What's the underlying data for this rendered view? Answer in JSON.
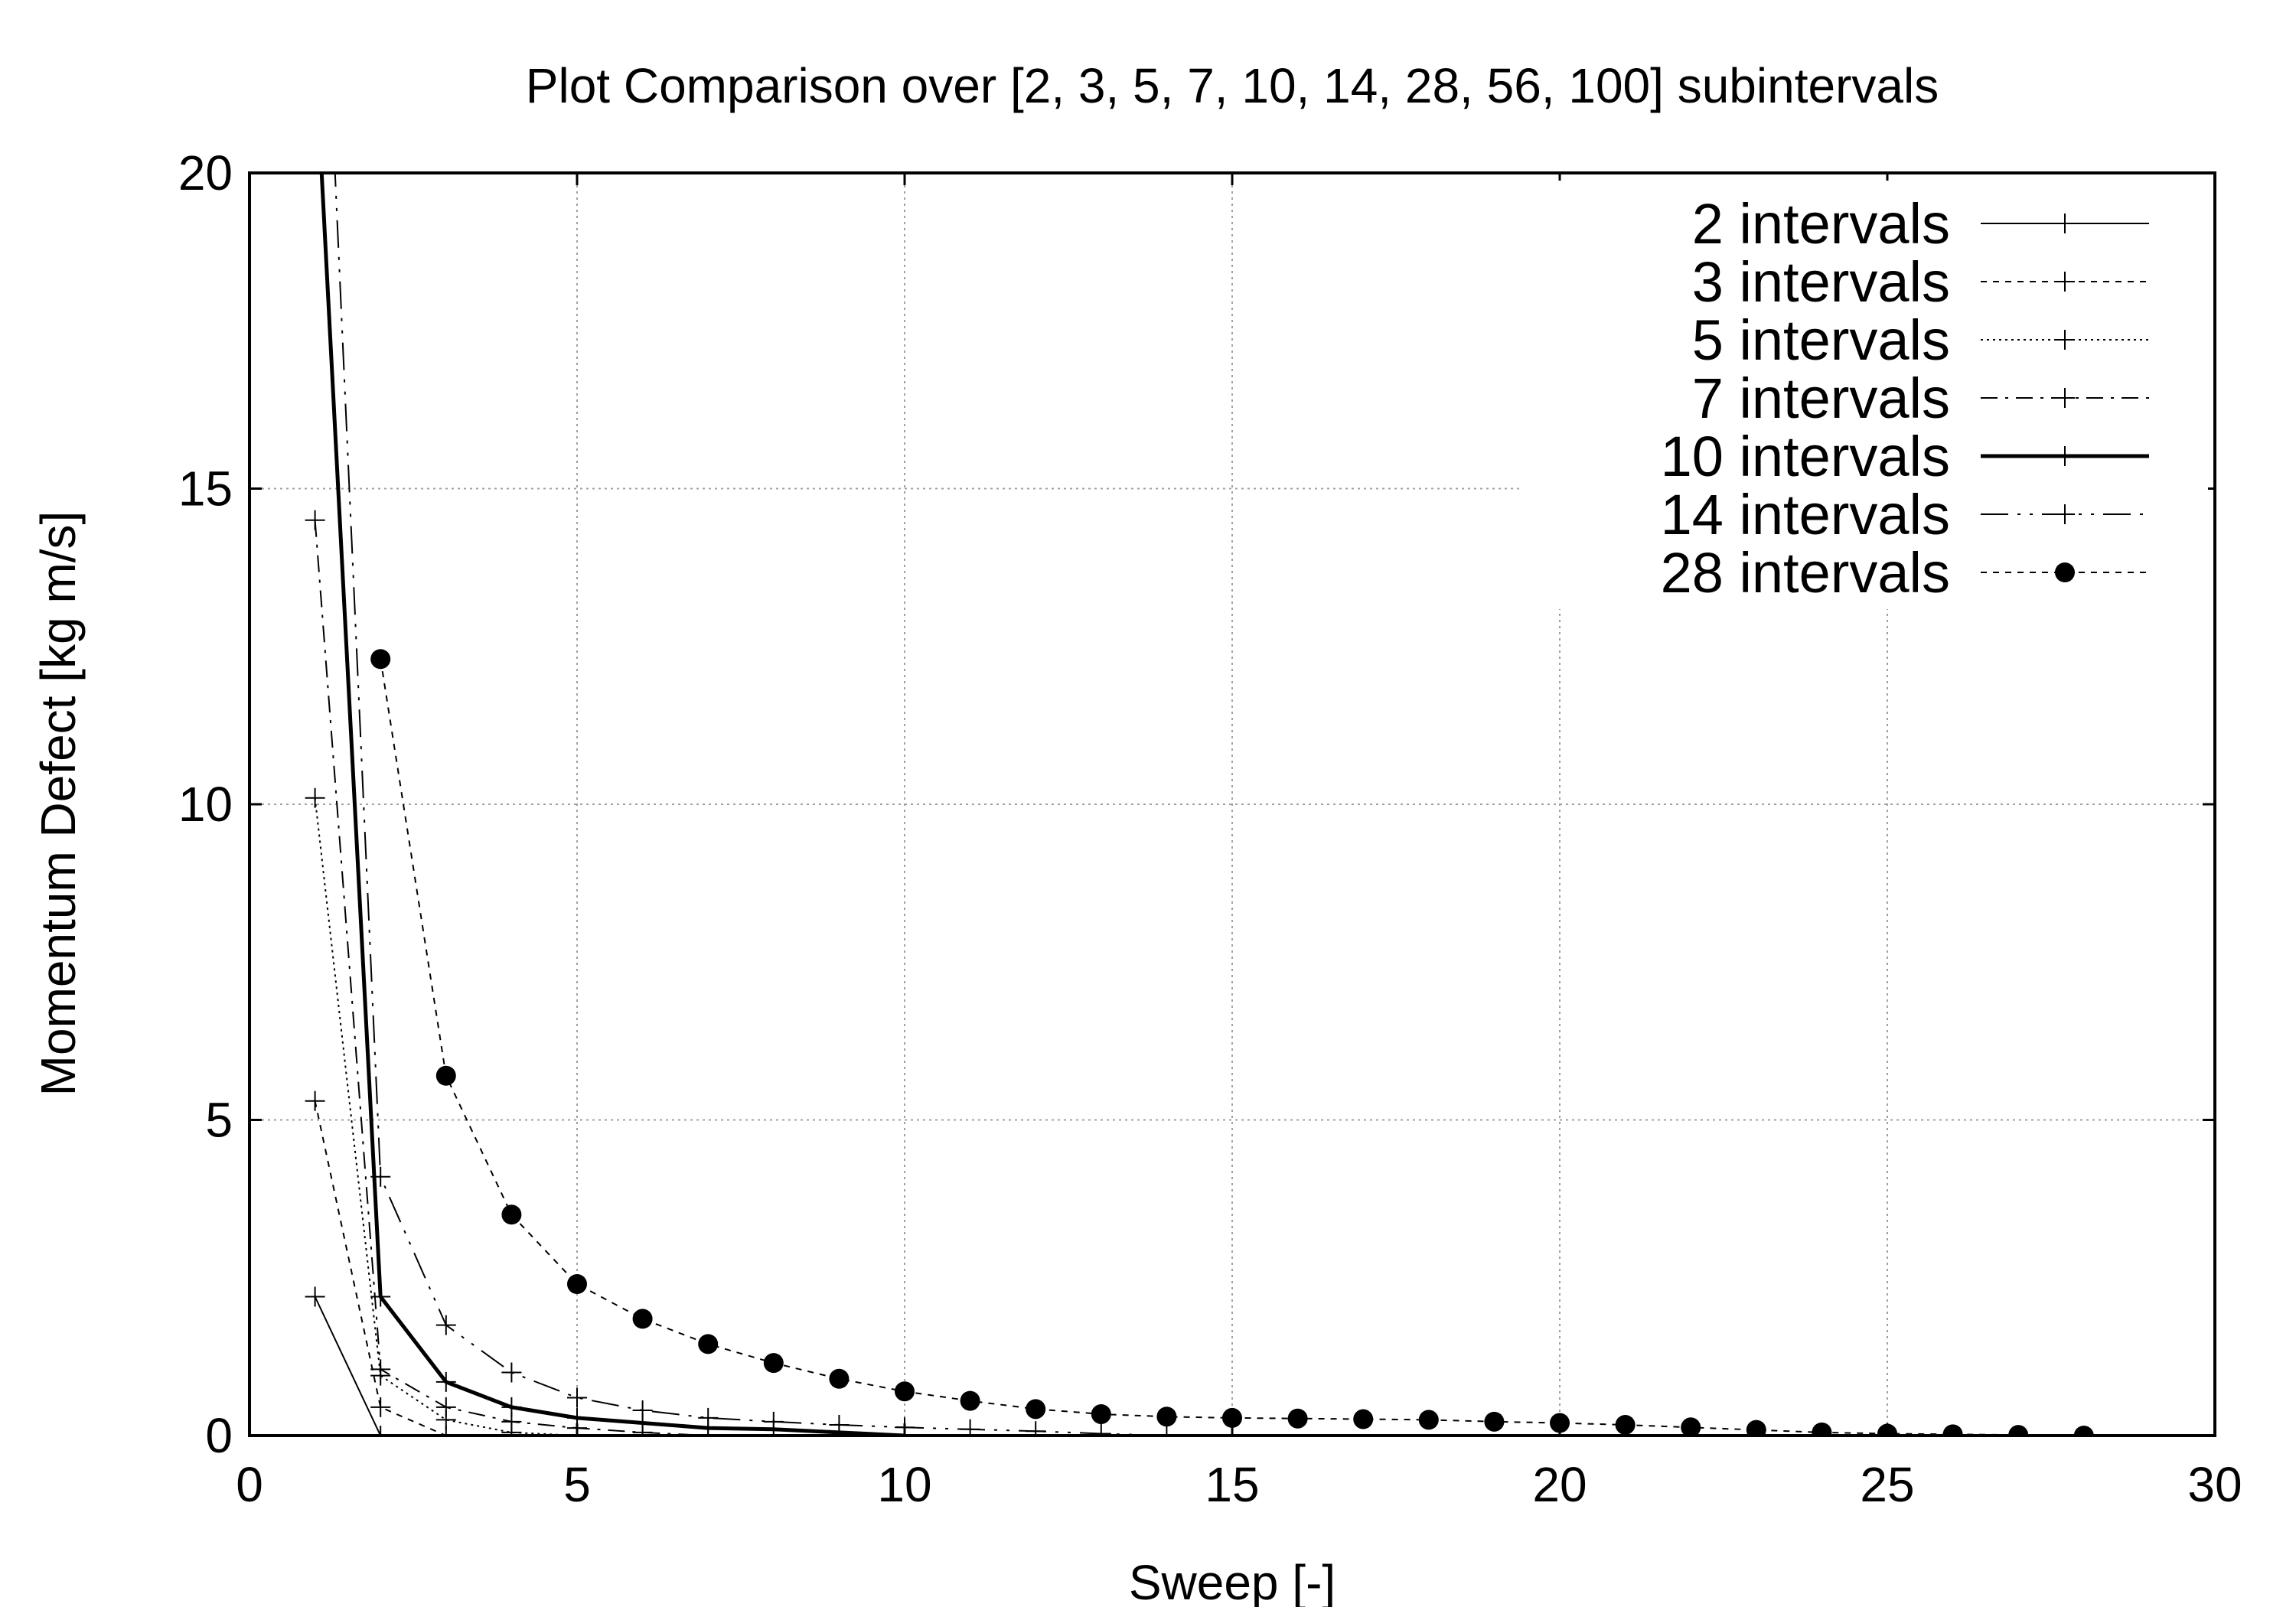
{
  "chart_data": {
    "type": "line",
    "title": "Plot Comparison over [2, 3, 5, 7, 10, 14, 28, 56, 100] subintervals",
    "xlabel": "Sweep [-]",
    "ylabel": "Momentum Defect [kg m/s]",
    "xlim": [
      0,
      30
    ],
    "ylim": [
      0,
      20
    ],
    "xticks": [
      0,
      5,
      10,
      15,
      20,
      25,
      30
    ],
    "yticks": [
      0,
      5,
      10,
      15,
      20
    ],
    "grid": true,
    "legend_position": "top-right",
    "series": [
      {
        "name": "2 intervals",
        "dash": "solid",
        "width": 2,
        "marker": "plus",
        "x": [
          1,
          2
        ],
        "y": [
          2.2,
          0.0
        ]
      },
      {
        "name": "3 intervals",
        "dash": "short-dash",
        "width": 2,
        "marker": "plus",
        "x": [
          1,
          2,
          3
        ],
        "y": [
          5.3,
          0.45,
          0.0
        ]
      },
      {
        "name": "5 intervals",
        "dash": "dotted",
        "width": 2,
        "marker": "plus",
        "x": [
          1,
          2,
          3,
          4,
          5
        ],
        "y": [
          10.1,
          0.95,
          0.25,
          0.05,
          0.0
        ]
      },
      {
        "name": "7 intervals",
        "dash": "dash-dot",
        "width": 2,
        "marker": "plus",
        "x": [
          1,
          2,
          3,
          4,
          5,
          6,
          7
        ],
        "y": [
          14.5,
          1.05,
          0.45,
          0.22,
          0.12,
          0.05,
          0.0
        ]
      },
      {
        "name": "10 intervals",
        "dash": "solid",
        "width": 5,
        "marker": "plus",
        "x": [
          1,
          2,
          3,
          4,
          5,
          6,
          7,
          8,
          9,
          10
        ],
        "y": [
          22.0,
          2.2,
          0.85,
          0.45,
          0.28,
          0.2,
          0.12,
          0.1,
          0.05,
          0.0
        ]
      },
      {
        "name": "14 intervals",
        "dash": "long-dash-dot-dot",
        "width": 2,
        "marker": "plus",
        "x": [
          1,
          2,
          3,
          4,
          5,
          6,
          7,
          8,
          9,
          10,
          11,
          12,
          13,
          14
        ],
        "y": [
          27.0,
          4.1,
          1.75,
          1.0,
          0.6,
          0.4,
          0.28,
          0.22,
          0.17,
          0.13,
          0.1,
          0.07,
          0.03,
          0.0
        ]
      },
      {
        "name": "28 intervals",
        "dash": "short-dash",
        "width": 2,
        "marker": "filled-circle",
        "x": [
          2,
          3,
          4,
          5,
          6,
          7,
          8,
          9,
          10,
          11,
          12,
          13,
          14,
          15,
          16,
          17,
          18,
          19,
          20,
          21,
          22,
          23,
          24,
          25,
          26,
          27,
          28
        ],
        "y": [
          12.3,
          5.7,
          3.5,
          2.4,
          1.85,
          1.45,
          1.15,
          0.9,
          0.7,
          0.55,
          0.42,
          0.34,
          0.3,
          0.28,
          0.27,
          0.26,
          0.25,
          0.22,
          0.2,
          0.17,
          0.13,
          0.09,
          0.05,
          0.03,
          0.02,
          0.01,
          0.0
        ]
      }
    ]
  }
}
